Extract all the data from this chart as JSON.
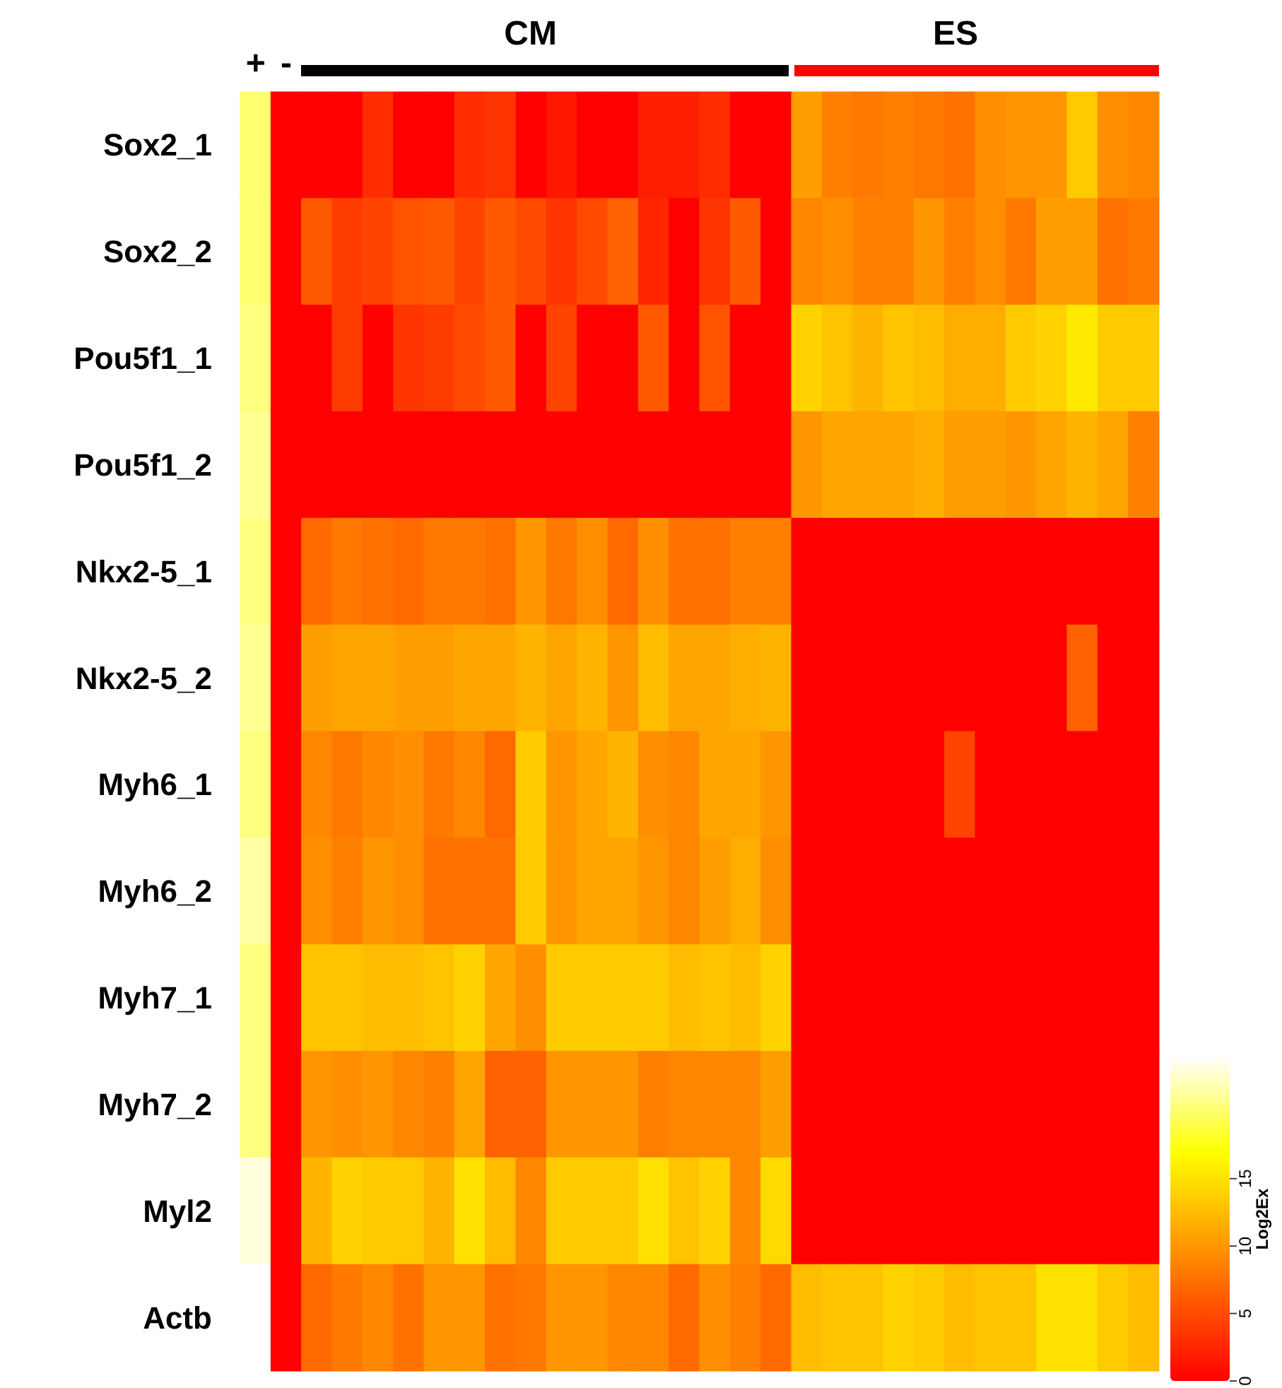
{
  "chart_data": {
    "type": "heatmap",
    "annotations": [
      "CM",
      "ES"
    ],
    "clabel": "Log2Ex",
    "categories": [
      "+",
      "-",
      null,
      null,
      null,
      null,
      null,
      null,
      null,
      null,
      null,
      null,
      null,
      null,
      null,
      null,
      null,
      null,
      null,
      null,
      null,
      null,
      null,
      null,
      null,
      null,
      null,
      null,
      null,
      null
    ],
    "y_categories": [
      "Sox2_1",
      "Sox2_2",
      "Pou5f1_1",
      "Pou5f1_2",
      "Nkx2-5_1",
      "Nkx2-5_2",
      "Myh6_1",
      "Myh6_2",
      "Myh7_1",
      "Myh7_2",
      "Myl2",
      "Actb"
    ],
    "cells": [
      [
        20,
        0,
        0,
        0,
        3,
        0,
        0,
        3,
        3.5,
        0,
        1.5,
        0,
        0,
        2,
        2,
        3,
        0,
        0,
        10.5,
        8.5,
        8,
        8.5,
        8,
        7.5,
        9.5,
        10,
        10,
        13.5,
        9.5,
        9
      ],
      [
        20,
        0,
        6,
        4,
        4.5,
        5.5,
        6,
        4.5,
        6,
        5,
        3.5,
        5,
        6.5,
        2.5,
        0,
        3.5,
        6,
        0,
        9,
        9.5,
        8.5,
        8.5,
        10,
        8.5,
        9.5,
        8,
        10.5,
        10.5,
        7.5,
        8
      ],
      [
        20.5,
        0,
        0,
        4,
        0,
        3.5,
        4,
        5,
        6,
        0,
        4.5,
        0,
        0,
        6,
        0,
        5.5,
        0,
        0,
        14,
        13,
        12,
        13,
        12.5,
        11.5,
        11.5,
        13.5,
        14,
        15.5,
        13.5,
        13.5
      ],
      [
        21,
        0,
        0,
        0,
        0,
        0,
        0,
        0,
        0,
        0,
        0,
        0,
        0,
        0,
        0,
        0,
        0,
        0,
        10,
        11,
        11,
        11,
        11.5,
        10.5,
        10.5,
        10,
        11,
        12,
        11,
        8.5
      ],
      [
        20.5,
        0,
        7,
        8,
        7.5,
        7,
        8,
        8,
        7.5,
        10,
        8,
        9.5,
        7,
        9.5,
        7.5,
        7.5,
        8.5,
        8.5,
        0,
        0,
        0,
        0,
        0,
        0,
        0,
        0,
        0,
        0,
        0,
        0
      ],
      [
        21,
        0,
        10.5,
        11,
        11,
        10.5,
        10.5,
        11,
        11,
        12,
        11,
        12,
        10,
        12.5,
        11,
        11,
        11.5,
        12,
        0,
        0,
        0,
        0,
        0,
        0,
        0,
        0,
        0,
        6.5,
        0,
        0
      ],
      [
        20.5,
        0,
        9,
        8,
        9,
        9.5,
        8,
        9,
        7,
        13.5,
        10,
        11,
        12,
        9.5,
        9,
        11,
        11,
        10,
        0,
        0,
        0,
        0,
        0,
        4.5,
        0,
        0,
        0,
        0,
        0,
        0
      ],
      [
        21.5,
        0,
        9.5,
        8.5,
        10,
        9.5,
        7.5,
        7.5,
        7.5,
        13.5,
        10,
        11,
        11,
        10,
        9,
        10.5,
        11.5,
        9.5,
        0,
        0,
        0,
        0,
        0,
        0,
        0,
        0,
        0,
        0,
        0,
        0
      ],
      [
        20.5,
        0,
        13,
        13,
        12.5,
        12.5,
        13,
        14,
        11,
        9.5,
        13.5,
        13.5,
        13.5,
        13.5,
        12.5,
        13,
        12.5,
        14,
        0,
        0,
        0,
        0,
        0,
        0,
        0,
        0,
        0,
        0,
        0,
        0
      ],
      [
        20.5,
        0,
        10,
        9.5,
        10,
        9,
        8.5,
        11,
        6.5,
        6.5,
        10,
        10,
        10,
        8.5,
        9,
        9,
        9,
        10.5,
        0,
        0,
        0,
        0,
        0,
        0,
        0,
        0,
        0,
        0,
        0,
        0
      ],
      [
        23,
        0,
        12,
        14,
        13.5,
        13.5,
        12,
        15,
        12.5,
        9,
        13.5,
        13.5,
        13.5,
        15,
        13,
        14,
        9,
        14.5,
        0,
        0,
        0,
        0,
        0,
        0,
        0,
        0,
        0,
        0,
        0,
        0
      ],
      [
        24,
        0,
        7,
        8,
        9,
        7.5,
        10,
        10,
        7.5,
        8,
        10,
        10,
        9,
        9,
        7,
        9.5,
        8.5,
        7,
        12.5,
        13,
        13,
        14,
        13.5,
        12.5,
        13,
        13,
        15,
        15,
        13.5,
        12.5
      ]
    ],
    "clim": [
      0,
      24
    ],
    "cticks": [
      0,
      5,
      10,
      15
    ]
  }
}
